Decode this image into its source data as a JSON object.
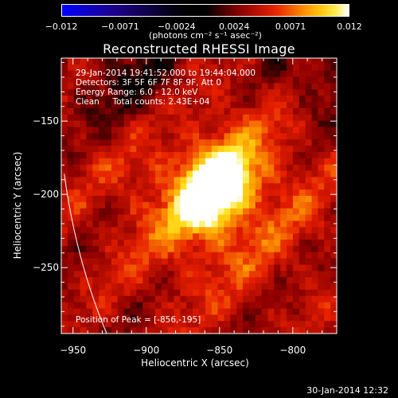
{
  "chart_data": {
    "type": "heatmap",
    "title": "Reconstructed RHESSI Image",
    "xlabel": "Heliocentric X (arcsec)",
    "ylabel": "Heliocentric Y (arcsec)",
    "xlim": [
      -958,
      -770
    ],
    "ylim": [
      -295,
      -107
    ],
    "x_ticks": [
      {
        "label": "−950",
        "value": -950
      },
      {
        "label": "−900",
        "value": -900
      },
      {
        "label": "−850",
        "value": -850
      },
      {
        "label": "−800",
        "value": -800
      }
    ],
    "y_ticks": [
      {
        "label": "−150",
        "value": -150
      },
      {
        "label": "−200",
        "value": -200
      },
      {
        "label": "−250",
        "value": -250
      }
    ],
    "colorbar": {
      "range": [
        -0.012,
        0.012
      ],
      "ticks": [
        {
          "label": "−0.012",
          "value": -0.012
        },
        {
          "label": "−0.0071",
          "value": -0.0071
        },
        {
          "label": "−0.0024",
          "value": -0.0024
        },
        {
          "label": "0.0024",
          "value": 0.0024
        },
        {
          "label": "0.0071",
          "value": 0.0071
        },
        {
          "label": "0.012",
          "value": 0.012
        }
      ],
      "units": "(photons cm⁻² s⁻¹ asec⁻²)"
    },
    "peak": {
      "x": -856,
      "y": -195
    },
    "annotations": [
      "29-Jan-2014 19:41:52.000 to 19:44:04.000",
      "Detectors: 3F 5F 6F 7F 8F 9F, Att 0",
      "Energy Range: 6.0 - 12.0 keV",
      "Clean     Total counts: 2.43E+04"
    ],
    "peak_label": "Position of Peak = [-856,-195]"
  },
  "footer": "30-Jan-2014 12:32"
}
